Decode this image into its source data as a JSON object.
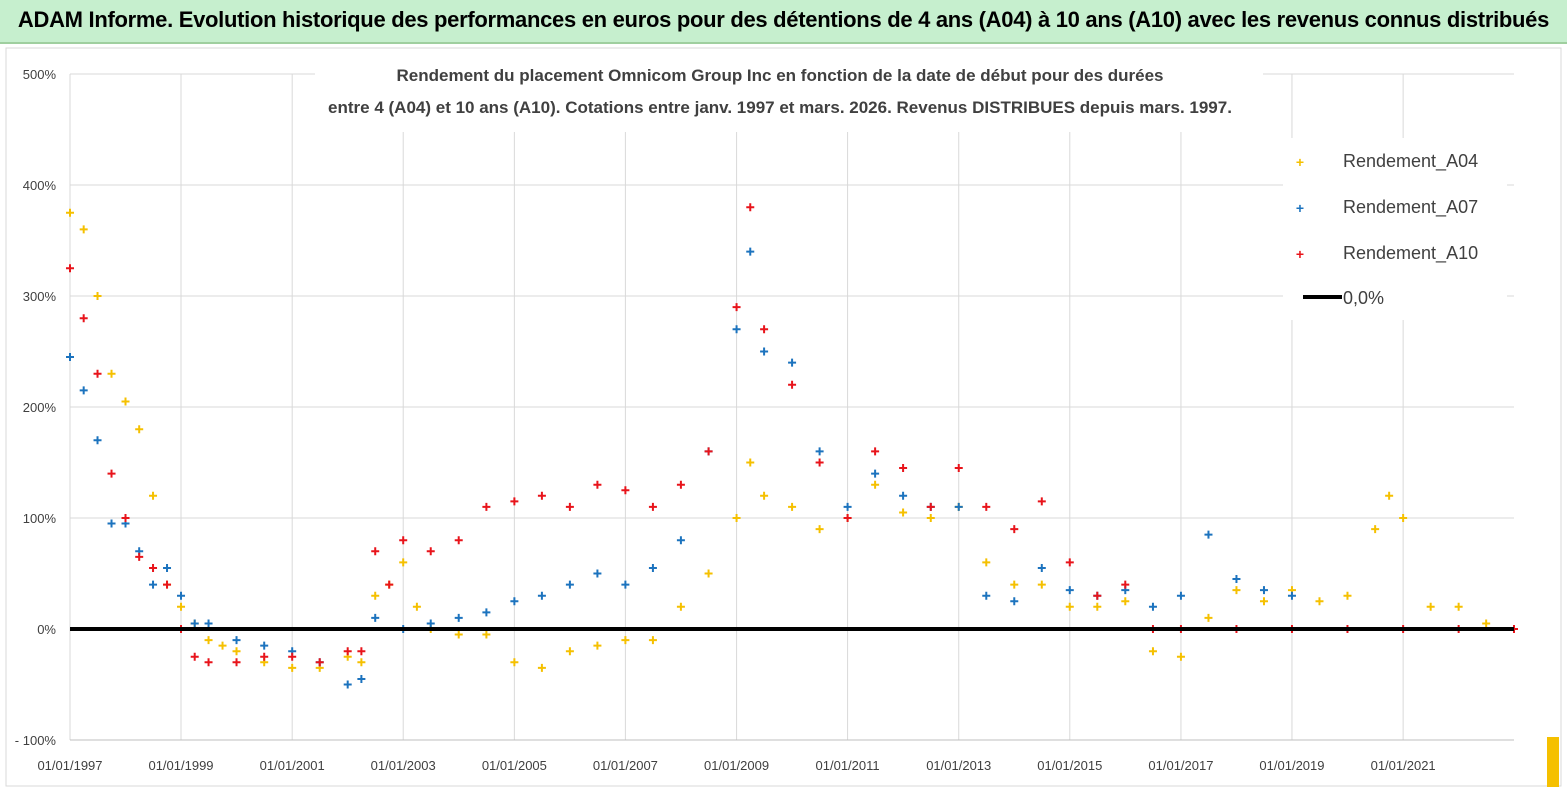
{
  "banner": {
    "title": "ADAM Informe. Evolution historique des performances en euros pour des détentions de 4 ans (A04) à 10 ans (A10) avec les revenus connus distribués"
  },
  "chart_data": {
    "type": "scatter",
    "title_line1": "Rendement du placement Omnicom Group Inc en fonction de la date de début pour des durées",
    "title_line2": "entre 4 (A04) et 10 ans (A10). Cotations entre janv. 1997 et mars. 2026. Revenus DISTRIBUES depuis mars. 1997.",
    "ylim": [
      -100,
      500
    ],
    "y_ticks": [
      -100,
      0,
      100,
      200,
      300,
      400,
      500
    ],
    "y_tick_labels": [
      "- 100%",
      "0%",
      "100%",
      "200%",
      "300%",
      "400%",
      "500%"
    ],
    "x_range": [
      "1997-01-01",
      "2022-12-31"
    ],
    "x_ticks": [
      "1997-01-01",
      "1999-01-01",
      "2001-01-01",
      "2003-01-01",
      "2005-01-01",
      "2007-01-01",
      "2009-01-01",
      "2011-01-01",
      "2013-01-01",
      "2015-01-01",
      "2017-01-01",
      "2019-01-01",
      "2021-01-01"
    ],
    "x_tick_labels": [
      "01/01/1997",
      "01/01/1999",
      "01/01/2001",
      "01/01/2003",
      "01/01/2005",
      "01/01/2007",
      "01/01/2009",
      "01/01/2011",
      "01/01/2013",
      "01/01/2015",
      "01/01/2017",
      "01/01/2019",
      "01/01/2021"
    ],
    "legend_position": "top-right",
    "grid": true,
    "series": [
      {
        "name": "Rendement_A04",
        "color": "#f5c000",
        "marker": "plus",
        "points": [
          [
            "1997-01-01",
            375
          ],
          [
            "1997-04-01",
            360
          ],
          [
            "1997-07-01",
            300
          ],
          [
            "1997-10-01",
            230
          ],
          [
            "1998-01-01",
            205
          ],
          [
            "1998-04-01",
            180
          ],
          [
            "1998-07-01",
            120
          ],
          [
            "1998-10-01",
            40
          ],
          [
            "1999-01-01",
            20
          ],
          [
            "1999-04-01",
            5
          ],
          [
            "1999-07-01",
            -10
          ],
          [
            "1999-10-01",
            -15
          ],
          [
            "2000-01-01",
            -20
          ],
          [
            "2000-07-01",
            -30
          ],
          [
            "2001-01-01",
            -35
          ],
          [
            "2001-07-01",
            -35
          ],
          [
            "2002-01-01",
            -25
          ],
          [
            "2002-04-01",
            -30
          ],
          [
            "2002-07-01",
            30
          ],
          [
            "2002-10-01",
            40
          ],
          [
            "2003-01-01",
            60
          ],
          [
            "2003-04-01",
            20
          ],
          [
            "2003-07-01",
            0
          ],
          [
            "2004-01-01",
            -5
          ],
          [
            "2004-07-01",
            -5
          ],
          [
            "2005-01-01",
            -30
          ],
          [
            "2005-07-01",
            -35
          ],
          [
            "2006-01-01",
            -20
          ],
          [
            "2006-07-01",
            -15
          ],
          [
            "2007-01-01",
            -10
          ],
          [
            "2007-07-01",
            -10
          ],
          [
            "2008-01-01",
            20
          ],
          [
            "2008-07-01",
            50
          ],
          [
            "2009-01-01",
            100
          ],
          [
            "2009-04-01",
            150
          ],
          [
            "2009-07-01",
            120
          ],
          [
            "2010-01-01",
            110
          ],
          [
            "2010-07-01",
            90
          ],
          [
            "2011-01-01",
            100
          ],
          [
            "2011-07-01",
            130
          ],
          [
            "2012-01-01",
            105
          ],
          [
            "2012-07-01",
            100
          ],
          [
            "2013-01-01",
            110
          ],
          [
            "2013-07-01",
            60
          ],
          [
            "2014-01-01",
            40
          ],
          [
            "2014-07-01",
            40
          ],
          [
            "2015-01-01",
            20
          ],
          [
            "2015-07-01",
            20
          ],
          [
            "2016-01-01",
            25
          ],
          [
            "2016-07-01",
            -20
          ],
          [
            "2017-01-01",
            -25
          ],
          [
            "2017-07-01",
            10
          ],
          [
            "2018-01-01",
            35
          ],
          [
            "2018-07-01",
            25
          ],
          [
            "2019-01-01",
            35
          ],
          [
            "2019-07-01",
            25
          ],
          [
            "2020-01-01",
            30
          ],
          [
            "2020-07-01",
            90
          ],
          [
            "2020-10-01",
            120
          ],
          [
            "2021-01-01",
            100
          ],
          [
            "2021-07-01",
            20
          ],
          [
            "2022-01-01",
            20
          ],
          [
            "2022-07-01",
            5
          ]
        ]
      },
      {
        "name": "Rendement_A07",
        "color": "#1c73be",
        "marker": "plus",
        "points": [
          [
            "1997-01-01",
            245
          ],
          [
            "1997-04-01",
            215
          ],
          [
            "1997-07-01",
            170
          ],
          [
            "1997-10-01",
            95
          ],
          [
            "1998-01-01",
            95
          ],
          [
            "1998-04-01",
            70
          ],
          [
            "1998-07-01",
            40
          ],
          [
            "1998-10-01",
            55
          ],
          [
            "1999-01-01",
            30
          ],
          [
            "1999-04-01",
            5
          ],
          [
            "1999-07-01",
            5
          ],
          [
            "2000-01-01",
            -10
          ],
          [
            "2000-07-01",
            -15
          ],
          [
            "2001-01-01",
            -20
          ],
          [
            "2001-07-01",
            -30
          ],
          [
            "2002-01-01",
            -50
          ],
          [
            "2002-04-01",
            -45
          ],
          [
            "2002-07-01",
            10
          ],
          [
            "2003-01-01",
            0
          ],
          [
            "2003-07-01",
            5
          ],
          [
            "2004-01-01",
            10
          ],
          [
            "2004-07-01",
            15
          ],
          [
            "2005-01-01",
            25
          ],
          [
            "2005-07-01",
            30
          ],
          [
            "2006-01-01",
            40
          ],
          [
            "2006-07-01",
            50
          ],
          [
            "2007-01-01",
            40
          ],
          [
            "2007-07-01",
            55
          ],
          [
            "2008-01-01",
            80
          ],
          [
            "2008-07-01",
            160
          ],
          [
            "2009-01-01",
            270
          ],
          [
            "2009-04-01",
            340
          ],
          [
            "2009-07-01",
            250
          ],
          [
            "2010-01-01",
            240
          ],
          [
            "2010-07-01",
            160
          ],
          [
            "2011-01-01",
            110
          ],
          [
            "2011-07-01",
            140
          ],
          [
            "2012-01-01",
            120
          ],
          [
            "2012-07-01",
            110
          ],
          [
            "2013-01-01",
            110
          ],
          [
            "2013-07-01",
            30
          ],
          [
            "2014-01-01",
            25
          ],
          [
            "2014-07-01",
            55
          ],
          [
            "2015-01-01",
            35
          ],
          [
            "2015-07-01",
            30
          ],
          [
            "2016-01-01",
            35
          ],
          [
            "2016-07-01",
            20
          ],
          [
            "2017-01-01",
            30
          ],
          [
            "2017-07-01",
            85
          ],
          [
            "2018-01-01",
            45
          ],
          [
            "2018-07-01",
            35
          ],
          [
            "2019-01-01",
            30
          ]
        ]
      },
      {
        "name": "Rendement_A10",
        "color": "#e8141b",
        "marker": "plus",
        "points": [
          [
            "1997-01-01",
            325
          ],
          [
            "1997-04-01",
            280
          ],
          [
            "1997-07-01",
            230
          ],
          [
            "1997-10-01",
            140
          ],
          [
            "1998-01-01",
            100
          ],
          [
            "1998-04-01",
            65
          ],
          [
            "1998-07-01",
            55
          ],
          [
            "1998-10-01",
            40
          ],
          [
            "1999-01-01",
            0
          ],
          [
            "1999-04-01",
            -25
          ],
          [
            "1999-07-01",
            -30
          ],
          [
            "2000-01-01",
            -30
          ],
          [
            "2000-07-01",
            -25
          ],
          [
            "2001-01-01",
            -25
          ],
          [
            "2001-07-01",
            -30
          ],
          [
            "2002-01-01",
            -20
          ],
          [
            "2002-04-01",
            -20
          ],
          [
            "2002-07-01",
            70
          ],
          [
            "2002-10-01",
            40
          ],
          [
            "2003-01-01",
            80
          ],
          [
            "2003-07-01",
            70
          ],
          [
            "2004-01-01",
            80
          ],
          [
            "2004-07-01",
            110
          ],
          [
            "2005-01-01",
            115
          ],
          [
            "2005-07-01",
            120
          ],
          [
            "2006-01-01",
            110
          ],
          [
            "2006-07-01",
            130
          ],
          [
            "2007-01-01",
            125
          ],
          [
            "2007-07-01",
            110
          ],
          [
            "2008-01-01",
            130
          ],
          [
            "2008-07-01",
            160
          ],
          [
            "2009-01-01",
            290
          ],
          [
            "2009-04-01",
            380
          ],
          [
            "2009-07-01",
            270
          ],
          [
            "2010-01-01",
            220
          ],
          [
            "2010-07-01",
            150
          ],
          [
            "2011-01-01",
            100
          ],
          [
            "2011-07-01",
            160
          ],
          [
            "2012-01-01",
            145
          ],
          [
            "2012-07-01",
            110
          ],
          [
            "2013-01-01",
            145
          ],
          [
            "2013-07-01",
            110
          ],
          [
            "2014-01-01",
            90
          ],
          [
            "2014-07-01",
            115
          ],
          [
            "2015-01-01",
            60
          ],
          [
            "2015-07-01",
            30
          ],
          [
            "2016-01-01",
            40
          ],
          [
            "2016-07-01",
            0
          ],
          [
            "2017-01-01",
            0
          ],
          [
            "2018-01-01",
            0
          ],
          [
            "2019-01-01",
            0
          ],
          [
            "2020-01-01",
            0
          ],
          [
            "2021-01-01",
            0
          ],
          [
            "2022-01-01",
            0
          ],
          [
            "2022-12-31",
            0
          ]
        ]
      },
      {
        "name": "0,0%",
        "color": "#000000",
        "marker": "line",
        "points": [
          [
            "1997-01-01",
            0
          ],
          [
            "2022-12-31",
            0
          ]
        ]
      }
    ]
  }
}
